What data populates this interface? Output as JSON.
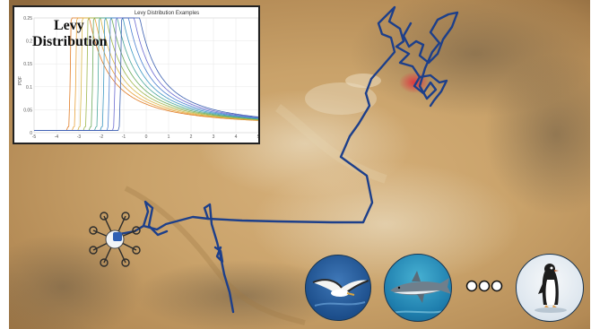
{
  "inset": {
    "heading_line1": "Levy",
    "heading_line2": "Distribution",
    "chart_data": {
      "type": "line",
      "title": "Levy Distribution Examples",
      "ylabel": "PDF",
      "xlabel": "",
      "xlim": [
        -5,
        5
      ],
      "ylim": [
        0,
        0.25
      ],
      "xticks": [
        "-5",
        "-4",
        "-3",
        "-2",
        "-1",
        "0",
        "1",
        "2",
        "3",
        "4",
        "5"
      ],
      "yticks": [
        "0",
        "0.05",
        "0.1",
        "0.15",
        "0.2",
        "0.25"
      ],
      "grid": true,
      "series": [
        {
          "mu": -2.6,
          "color": "#e07b24"
        },
        {
          "mu": -2.35,
          "color": "#e8a23a"
        },
        {
          "mu": -2.1,
          "color": "#d9b84a"
        },
        {
          "mu": -1.85,
          "color": "#9fb64c"
        },
        {
          "mu": -1.6,
          "color": "#6aaa5a"
        },
        {
          "mu": -1.35,
          "color": "#4aa79a"
        },
        {
          "mu": -1.1,
          "color": "#3e98c2"
        },
        {
          "mu": -0.85,
          "color": "#4a7fd0"
        },
        {
          "mu": -0.6,
          "color": "#6b6ad0"
        },
        {
          "mu": -0.35,
          "color": "#3b5fb0"
        }
      ]
    }
  },
  "colors": {
    "track": "#1d3f8a",
    "hotspot": "#e0343f",
    "desert": "#c9a26a"
  },
  "icons": [
    "drone-icon",
    "albatross-icon",
    "shark-icon",
    "ellipsis-icon",
    "penguin-icon"
  ]
}
